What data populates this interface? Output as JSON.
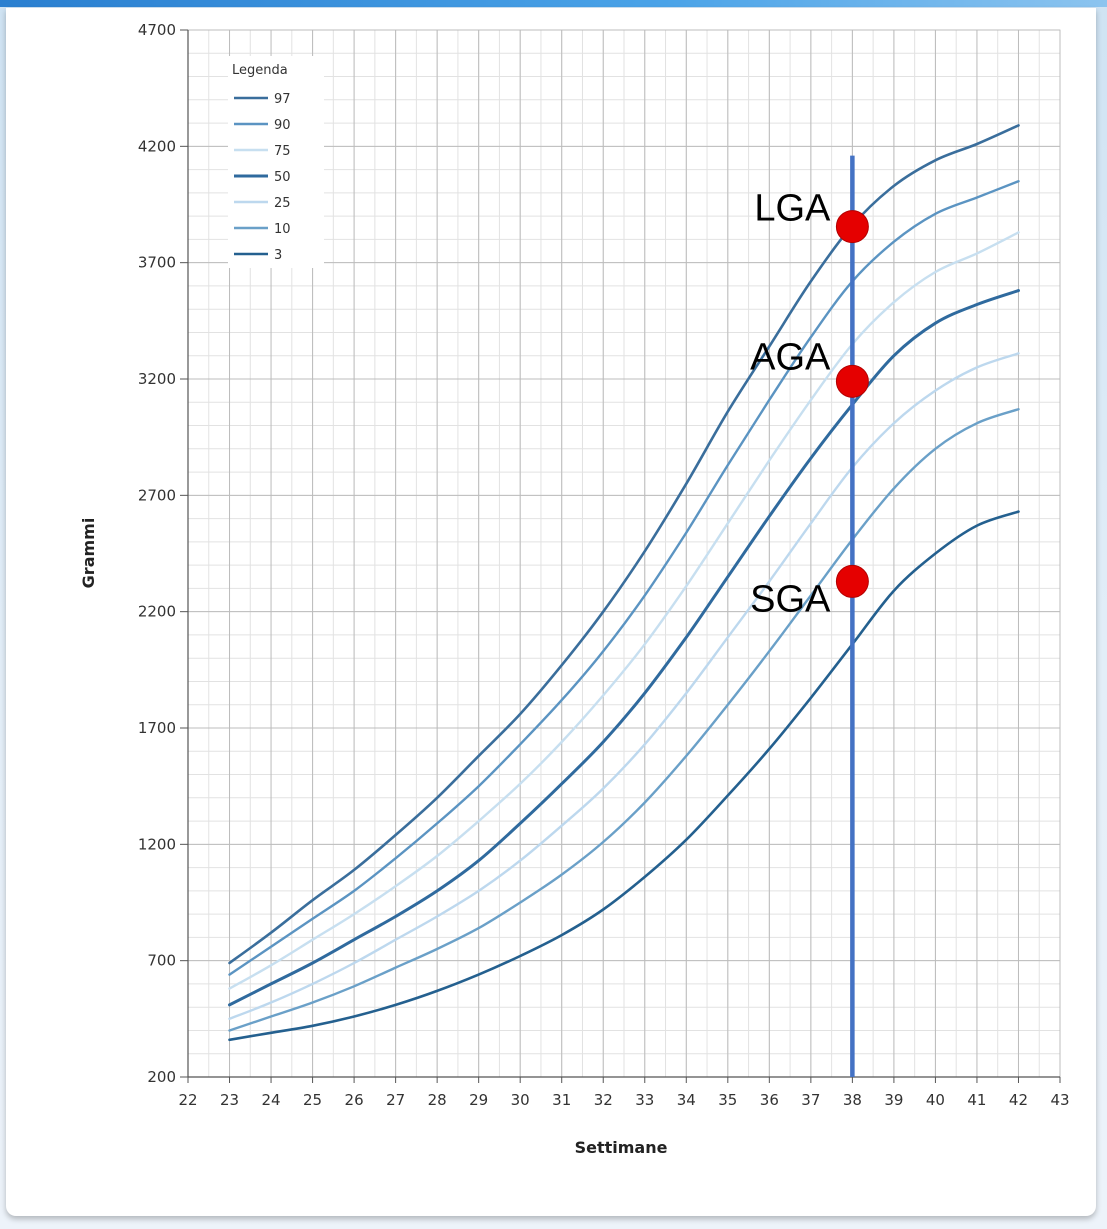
{
  "chart_data": {
    "type": "line",
    "xlabel": "Settimane",
    "ylabel": "Grammi",
    "xlim": [
      22,
      43
    ],
    "ylim": [
      200,
      4700
    ],
    "x_ticks": [
      22,
      23,
      24,
      25,
      26,
      27,
      28,
      29,
      30,
      31,
      32,
      33,
      34,
      35,
      36,
      37,
      38,
      39,
      40,
      41,
      42,
      43
    ],
    "y_ticks": [
      200,
      700,
      1200,
      1700,
      2200,
      2700,
      3200,
      3700,
      4200,
      4700
    ],
    "grid": true,
    "legend": {
      "title": "Legenda",
      "placement": "top-left"
    },
    "x": [
      23,
      24,
      25,
      26,
      27,
      28,
      29,
      30,
      31,
      32,
      33,
      34,
      35,
      36,
      37,
      38,
      39,
      40,
      41,
      42
    ],
    "series": [
      {
        "name": "97",
        "color": "#3a6e9c",
        "values": [
          690,
          820,
          960,
          1090,
          1240,
          1400,
          1580,
          1760,
          1970,
          2200,
          2460,
          2750,
          3060,
          3340,
          3620,
          3860,
          4030,
          4140,
          4210,
          4290
        ]
      },
      {
        "name": "90",
        "color": "#5b94c2",
        "values": [
          640,
          760,
          880,
          1000,
          1140,
          1290,
          1450,
          1630,
          1820,
          2030,
          2270,
          2540,
          2830,
          3110,
          3380,
          3620,
          3790,
          3910,
          3980,
          4050
        ]
      },
      {
        "name": "75",
        "color": "#c7dff0",
        "values": [
          580,
          680,
          790,
          900,
          1020,
          1150,
          1300,
          1460,
          1640,
          1840,
          2060,
          2310,
          2580,
          2850,
          3110,
          3350,
          3530,
          3660,
          3740,
          3830
        ]
      },
      {
        "name": "50",
        "color": "#2f6a9e",
        "values": [
          510,
          600,
          690,
          790,
          890,
          1000,
          1130,
          1290,
          1460,
          1640,
          1850,
          2090,
          2350,
          2610,
          2860,
          3090,
          3300,
          3440,
          3520,
          3580
        ]
      },
      {
        "name": "25",
        "color": "#bdd8ee",
        "values": [
          450,
          520,
          600,
          690,
          790,
          890,
          1000,
          1130,
          1280,
          1440,
          1630,
          1850,
          2090,
          2330,
          2580,
          2820,
          3010,
          3150,
          3250,
          3310
        ]
      },
      {
        "name": "10",
        "color": "#6aa0c8",
        "values": [
          400,
          460,
          520,
          590,
          670,
          750,
          840,
          950,
          1070,
          1210,
          1380,
          1580,
          1800,
          2030,
          2270,
          2510,
          2730,
          2900,
          3010,
          3070
        ]
      },
      {
        "name": "3",
        "color": "#24608f",
        "values": [
          360,
          390,
          420,
          460,
          510,
          570,
          640,
          720,
          810,
          920,
          1060,
          1220,
          1410,
          1610,
          1830,
          2060,
          2290,
          2450,
          2570,
          2630
        ]
      }
    ],
    "reference_line": {
      "x": 38,
      "y_range": [
        200,
        4160
      ],
      "color": "#4472c4"
    },
    "annotations": [
      {
        "label": "LGA",
        "x": 38,
        "y": 3855,
        "color": "#e50000"
      },
      {
        "label": "AGA",
        "x": 38,
        "y": 3190,
        "color": "#e50000"
      },
      {
        "label": "SGA",
        "x": 38,
        "y": 2330,
        "color": "#e50000"
      }
    ]
  }
}
